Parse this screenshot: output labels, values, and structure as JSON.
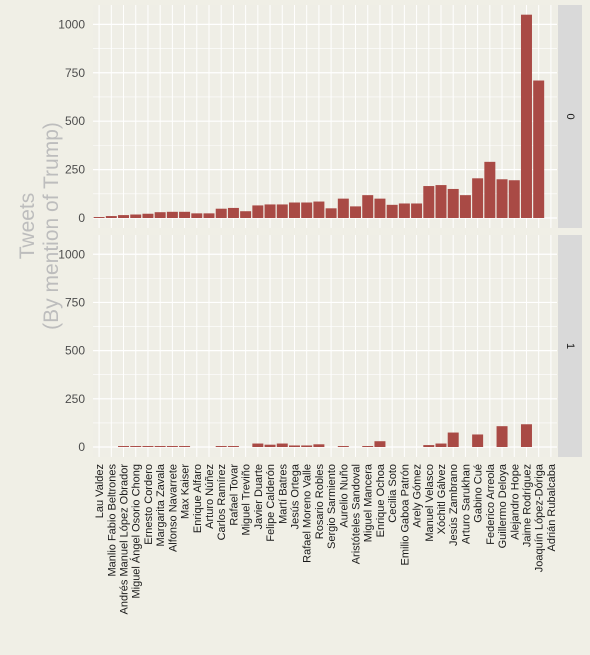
{
  "chart_data": {
    "type": "bar",
    "facet_layout": "vertical",
    "ylabel": "Tweets\n(By mention of Trump)",
    "xlabel": "",
    "y_ticks": [
      0,
      250,
      500,
      750,
      1000
    ],
    "ylim": [
      0,
      1100
    ],
    "grid": true,
    "colors": {
      "bar": "#a94a45",
      "panel_bg": "#efeee6",
      "grid": "#ffffff",
      "strip_bg": "#d9d9d9",
      "axis_title": "#bdbdbd",
      "tick_text": "#4d4d4d"
    },
    "categories": [
      "Lau Valdez",
      "Manlio Fabio Beltrones",
      "Andrés Manuel López Obrador",
      "Miguel Ángel Osorio Chong",
      "Ernesto Cordero",
      "Margarita Zavala",
      "Alfonso Navarrete",
      "Max Kaiser",
      "Enrique Alfaro",
      "Arturo Núñez",
      "Carlos Ramírez",
      "Rafael Tovar",
      "Miguel Treviño",
      "Javier Duarte",
      "Felipe Calderón",
      "Martí Batres",
      "Jesús Ortega",
      "Rafael Moreno Valle",
      "Rosario Robles",
      "Sergio Sarmiento",
      "Aurelio Nuño",
      "Aristóteles Sandoval",
      "Miguel Mancera",
      "Enrique Ochoa",
      "Cecilia Soto",
      "Emilio Gaboa Patrón",
      "Arely Gómez",
      "Manuel Velasco",
      "Xóchitl Gálvez",
      "Jesús Zambrano",
      "Arturo Sarukhan",
      "Gabino Cué",
      "Federico Arreola",
      "Guillermo Deloya",
      "Alejandro Hope",
      "Jaime Rodríguez",
      "Joaquín López-Dóriga",
      "Adrián Rubalcaba"
    ],
    "series": [
      {
        "facet": "0",
        "values": [
          5,
          10,
          15,
          18,
          22,
          30,
          32,
          32,
          24,
          24,
          48,
          52,
          35,
          65,
          70,
          70,
          80,
          80,
          85,
          50,
          100,
          60,
          118,
          100,
          68,
          75,
          75,
          165,
          170,
          150,
          118,
          205,
          290,
          200,
          195,
          1050,
          710,
          0
        ]
      },
      {
        "facet": "1",
        "values": [
          0,
          0,
          5,
          5,
          5,
          5,
          5,
          5,
          0,
          0,
          5,
          5,
          0,
          18,
          12,
          18,
          8,
          8,
          14,
          0,
          5,
          0,
          5,
          30,
          0,
          0,
          0,
          10,
          18,
          75,
          0,
          65,
          0,
          108,
          0,
          118,
          0,
          0
        ]
      }
    ]
  }
}
